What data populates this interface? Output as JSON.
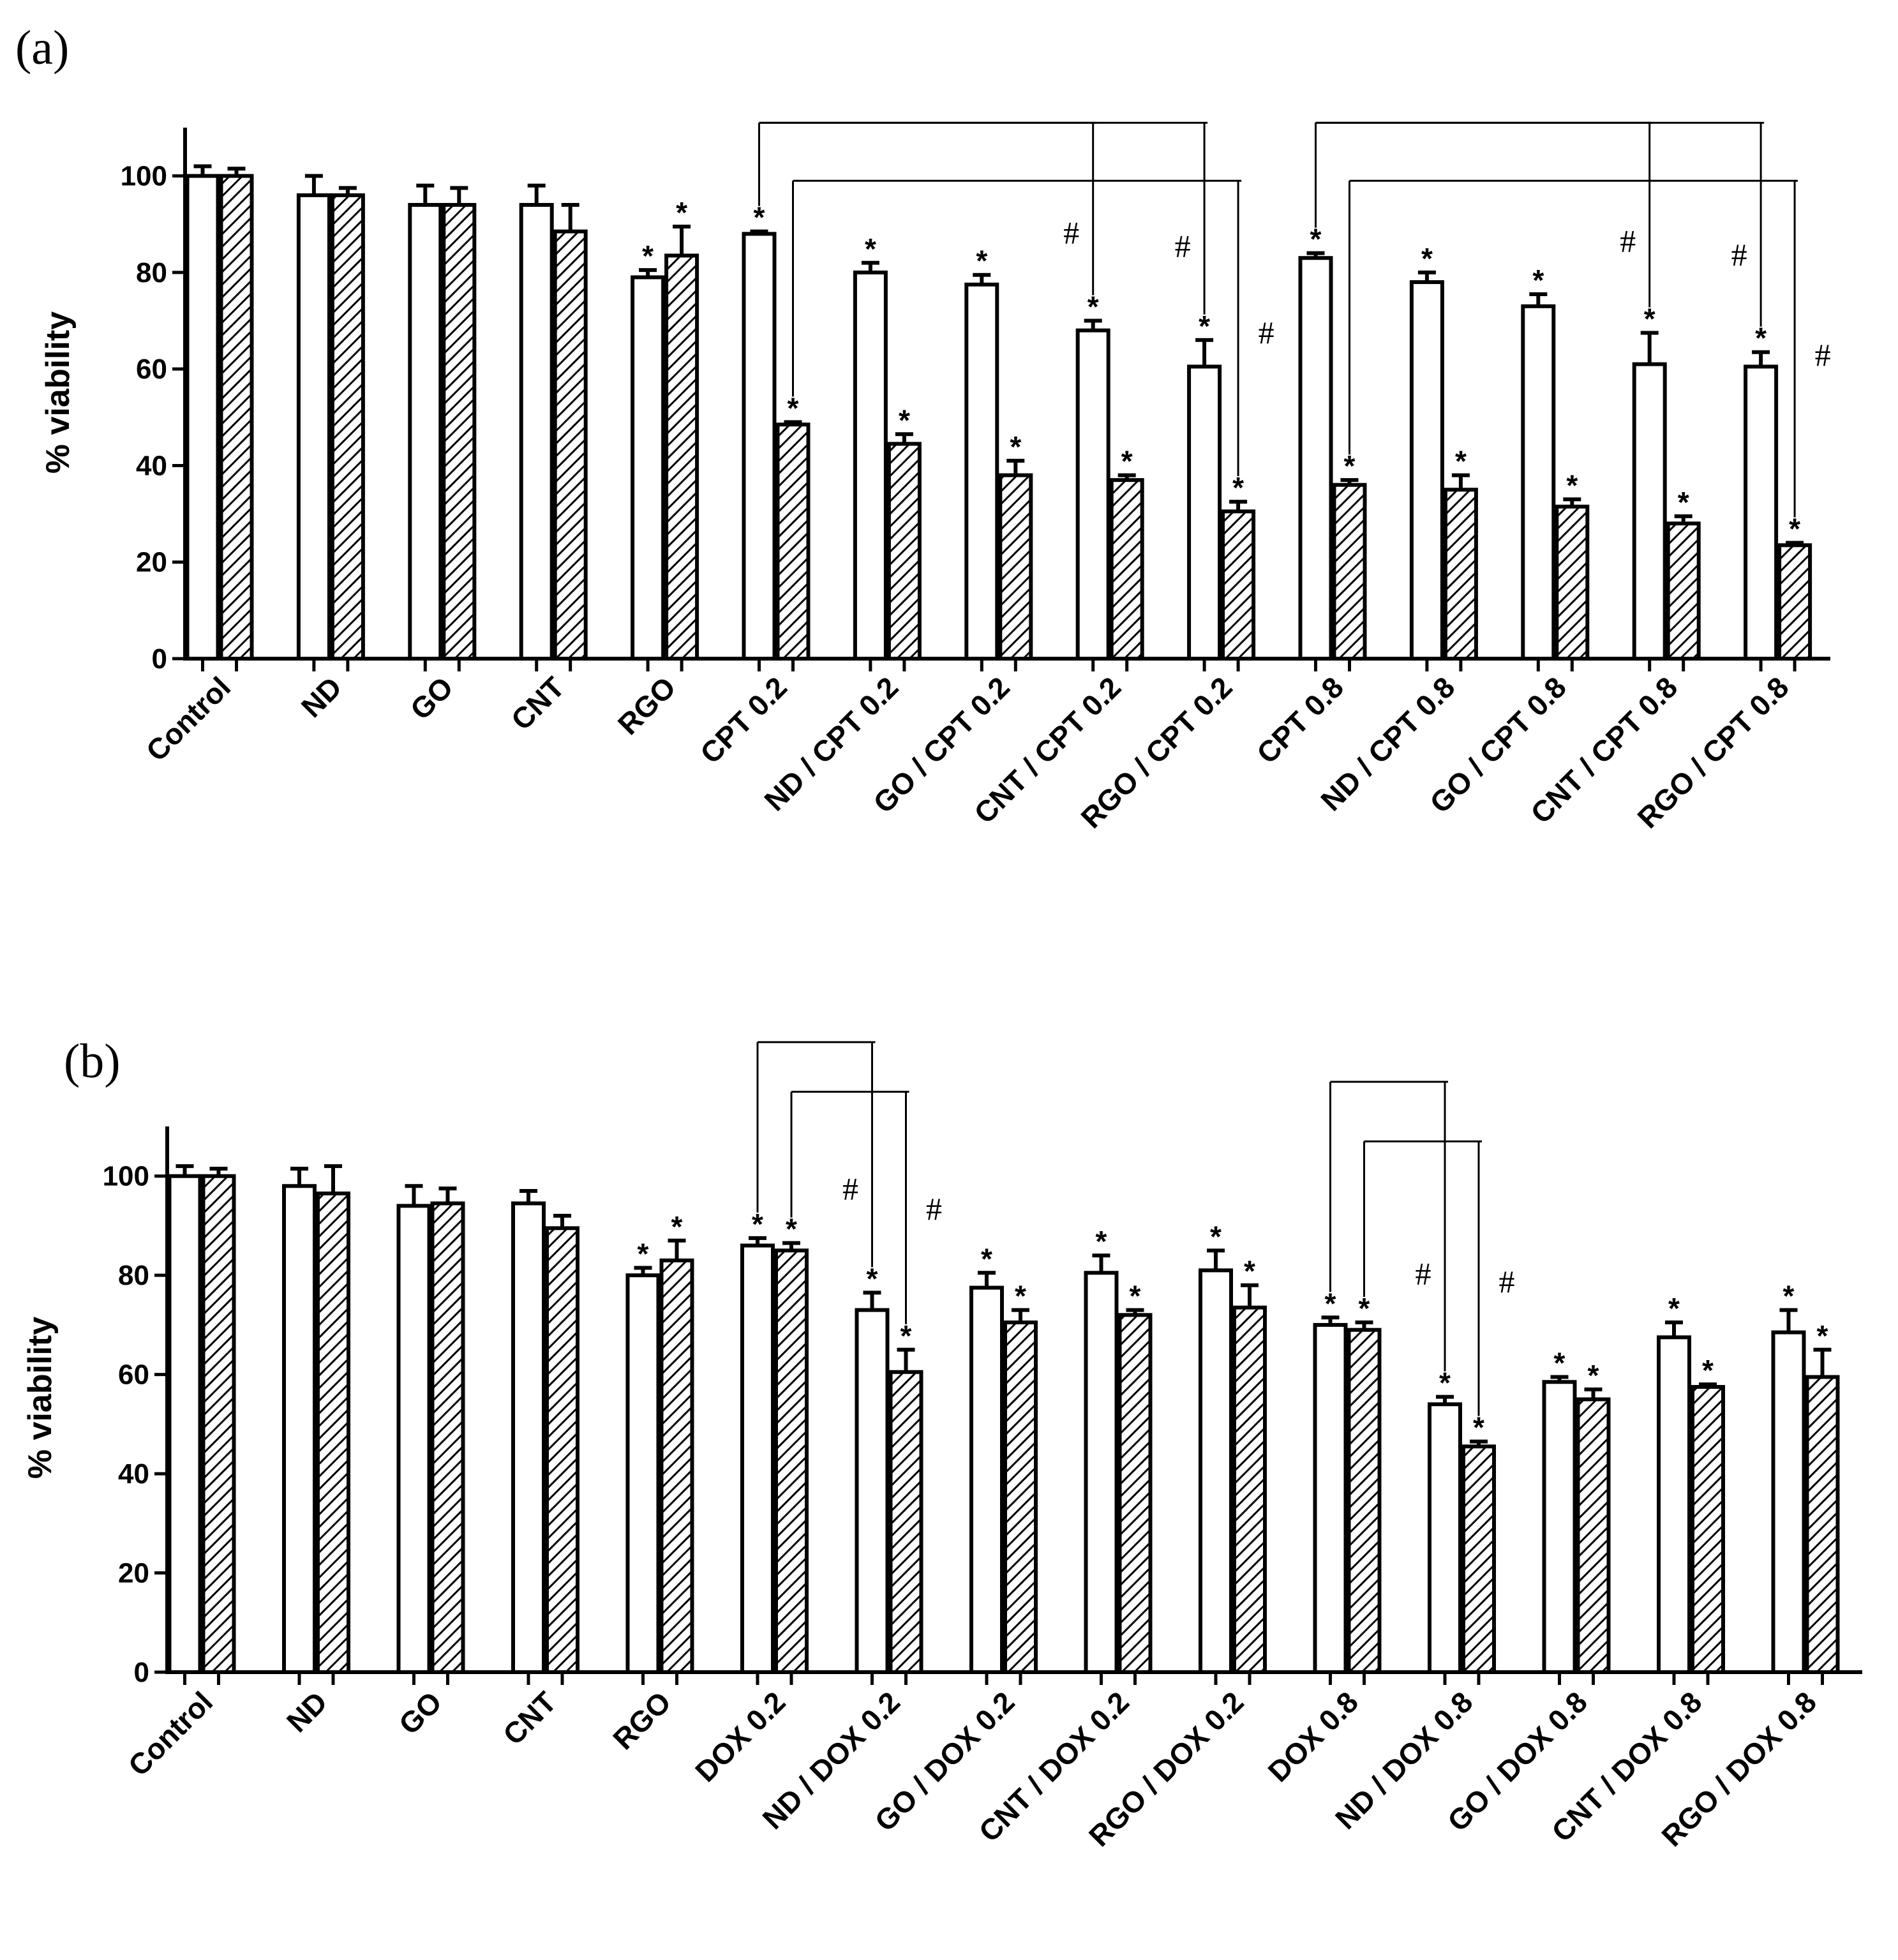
{
  "chart_data": [
    {
      "panel_label": "(a)",
      "type": "bar",
      "ylabel": "% viability",
      "ylim": [
        0,
        110
      ],
      "yticks": [
        0,
        20,
        40,
        60,
        80,
        100
      ],
      "categories": [
        "Control",
        "ND",
        "GO",
        "CNT",
        "RGO",
        "CPT 0.2",
        "ND / CPT 0.2",
        "GO / CPT 0.2",
        "CNT / CPT 0.2",
        "RGO / CPT 0.2",
        "CPT 0.8",
        "ND / CPT 0.8",
        "GO / CPT 0.8",
        "CNT / CPT 0.8",
        "RGO / CPT 0.8"
      ],
      "series": [
        {
          "name": "open",
          "pattern": "open",
          "values": [
            100,
            96,
            94,
            94,
            79,
            88,
            80,
            77.5,
            68,
            60.5,
            83,
            78,
            73,
            61,
            60.5
          ],
          "errors": [
            2,
            4,
            4,
            4,
            1.5,
            0.5,
            2,
            2,
            2,
            5.5,
            1,
            2,
            2.5,
            6.5,
            3
          ],
          "significant": [
            false,
            false,
            false,
            false,
            true,
            true,
            true,
            true,
            true,
            true,
            true,
            true,
            true,
            true,
            true
          ]
        },
        {
          "name": "hatched",
          "pattern": "hatched",
          "values": [
            100,
            96,
            94,
            88.5,
            83.5,
            48.5,
            44.5,
            38,
            37,
            30.5,
            36,
            35,
            31.5,
            28,
            23.5
          ],
          "errors": [
            1.5,
            1.5,
            3.5,
            5.5,
            6,
            0.5,
            2,
            3,
            1,
            2,
            1,
            3,
            1.5,
            1.5,
            0.5
          ],
          "significant": [
            false,
            false,
            false,
            false,
            true,
            true,
            true,
            true,
            true,
            true,
            true,
            true,
            true,
            true,
            true
          ]
        }
      ],
      "star_symbol": "*",
      "brackets": [
        {
          "from": 5,
          "from_series": 0,
          "to": 8,
          "to_series": 0,
          "level": 111,
          "symbol": "#"
        },
        {
          "from": 5,
          "from_series": 0,
          "to": 9,
          "to_series": 0,
          "level": 111,
          "symbol": "#"
        },
        {
          "from": 5,
          "from_series": 1,
          "to": 9,
          "to_series": 1,
          "level": 99,
          "symbol": "#"
        },
        {
          "from": 10,
          "from_series": 0,
          "to": 13,
          "to_series": 0,
          "level": 111,
          "symbol": "#"
        },
        {
          "from": 10,
          "from_series": 0,
          "to": 14,
          "to_series": 0,
          "level": 111,
          "symbol": "#"
        },
        {
          "from": 10,
          "from_series": 1,
          "to": 14,
          "to_series": 1,
          "level": 99,
          "symbol": "#"
        }
      ]
    },
    {
      "panel_label": "(b)",
      "type": "bar",
      "ylabel": "% viability",
      "ylim": [
        0,
        110
      ],
      "yticks": [
        0,
        20,
        40,
        60,
        80,
        100
      ],
      "categories": [
        "Control",
        "ND",
        "GO",
        "CNT",
        "RGO",
        "DOX 0.2",
        "ND / DOX 0.2",
        "GO / DOX 0.2",
        "CNT / DOX 0.2",
        "RGO / DOX 0.2",
        "DOX 0.8",
        "ND / DOX 0.8",
        "GO / DOX 0.8",
        "CNT / DOX 0.8",
        "RGO / DOX 0.8"
      ],
      "series": [
        {
          "name": "open",
          "pattern": "open",
          "values": [
            100,
            98,
            94,
            94.5,
            80,
            86,
            73,
            77.5,
            80.5,
            81,
            70,
            54,
            58.5,
            67.5,
            68.5
          ],
          "errors": [
            2,
            3.5,
            4,
            2.5,
            1.5,
            1.5,
            3.5,
            3,
            3.5,
            4,
            1.5,
            1.5,
            1,
            3,
            4.5
          ],
          "significant": [
            false,
            false,
            false,
            false,
            true,
            true,
            true,
            true,
            true,
            true,
            true,
            true,
            true,
            true,
            true
          ]
        },
        {
          "name": "hatched",
          "pattern": "hatched",
          "values": [
            100,
            96.5,
            94.5,
            89.5,
            83,
            85,
            60.5,
            70.5,
            72,
            73.5,
            69,
            45.5,
            55,
            57.5,
            59.5
          ],
          "errors": [
            1.5,
            5.5,
            3,
            2.5,
            4,
            1.5,
            4.5,
            2.5,
            1,
            4.5,
            1.5,
            1,
            2,
            0.5,
            5.5
          ],
          "significant": [
            false,
            false,
            false,
            false,
            true,
            true,
            true,
            true,
            true,
            true,
            true,
            true,
            true,
            true,
            true
          ]
        }
      ],
      "star_symbol": "*",
      "brackets": [
        {
          "from": 5,
          "from_series": 0,
          "to": 6,
          "to_series": 0,
          "level": 127,
          "symbol": "#"
        },
        {
          "from": 5,
          "from_series": 1,
          "to": 6,
          "to_series": 1,
          "level": 117,
          "symbol": "#"
        },
        {
          "from": 10,
          "from_series": 0,
          "to": 11,
          "to_series": 0,
          "level": 119,
          "symbol": "#"
        },
        {
          "from": 10,
          "from_series": 1,
          "to": 11,
          "to_series": 1,
          "level": 107,
          "symbol": "#"
        }
      ]
    }
  ]
}
